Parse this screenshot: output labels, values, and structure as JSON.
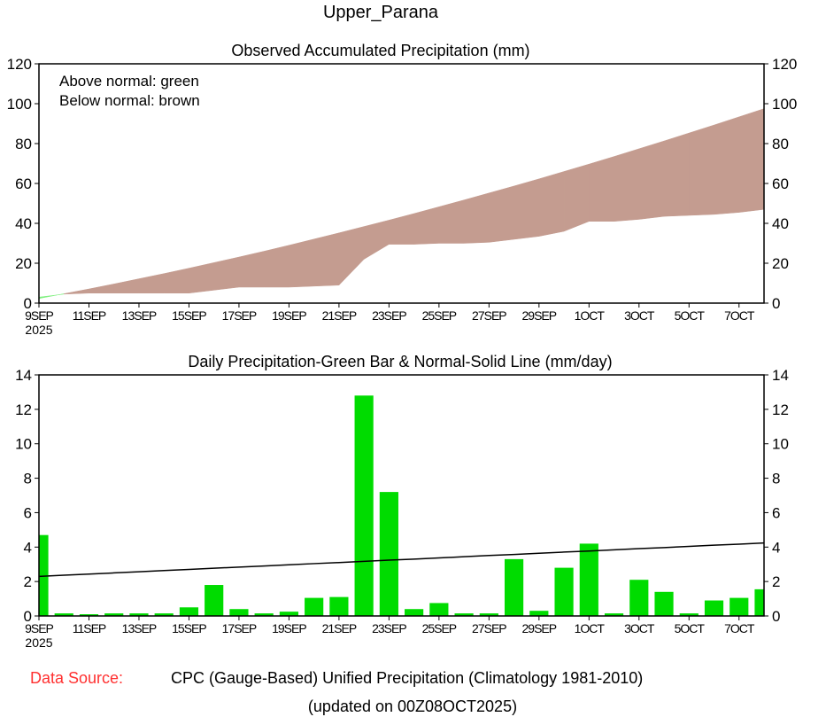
{
  "title": "Upper_Parana",
  "footer": {
    "source_label": "Data Source:",
    "source_text": "CPC (Gauge-Based) Unified Precipitation (Climatology 1981-2010)",
    "updated": "(updated on 00Z08OCT2025)"
  },
  "colors": {
    "below": "#c49c90",
    "above": "#80f080",
    "bar": "#00dc00",
    "source_label": "#ff3030"
  },
  "chart_data": [
    {
      "type": "area",
      "title": "Observed Accumulated Precipitation (mm)",
      "legend": [
        "Above normal: green",
        "Below normal: brown"
      ],
      "ylim": [
        0,
        120
      ],
      "yticks": [
        "0",
        "20",
        "40",
        "60",
        "80",
        "100",
        "120"
      ],
      "xtick_labels": [
        "9SEP",
        "11SEP",
        "13SEP",
        "15SEP",
        "17SEP",
        "19SEP",
        "21SEP",
        "23SEP",
        "25SEP",
        "27SEP",
        "29SEP",
        "1OCT",
        "3OCT",
        "5OCT",
        "7OCT"
      ],
      "year_label": "2025",
      "x": [
        "9SEP",
        "10SEP",
        "11SEP",
        "12SEP",
        "13SEP",
        "14SEP",
        "15SEP",
        "16SEP",
        "17SEP",
        "18SEP",
        "19SEP",
        "20SEP",
        "21SEP",
        "22SEP",
        "23SEP",
        "24SEP",
        "25SEP",
        "26SEP",
        "27SEP",
        "28SEP",
        "29SEP",
        "30SEP",
        "1OCT",
        "2OCT",
        "3OCT",
        "4OCT",
        "5OCT",
        "6OCT",
        "7OCT",
        "8OCT"
      ],
      "series": [
        {
          "name": "Observed accumulated",
          "values": [
            3,
            4.5,
            5,
            5,
            5,
            5,
            5,
            6.5,
            8,
            8,
            8,
            8.5,
            9,
            22,
            29.5,
            29.5,
            30,
            30,
            30.5,
            32,
            33.5,
            36,
            41,
            41,
            42,
            43.5,
            44,
            44.5,
            45.5,
            47
          ]
        },
        {
          "name": "Normal accumulated",
          "values": [
            2.3,
            4.7,
            7.1,
            9.6,
            12.2,
            14.8,
            17.5,
            20.3,
            23.1,
            26,
            29,
            32.1,
            35.2,
            38.4,
            41.6,
            44.9,
            48.3,
            51.7,
            55.2,
            58.7,
            62.3,
            66,
            69.7,
            73.5,
            77.4,
            81.3,
            85.3,
            89.3,
            93.4,
            97.5
          ]
        }
      ]
    },
    {
      "type": "bar",
      "title": "Daily Precipitation-Green Bar & Normal-Solid Line (mm/day)",
      "ylim": [
        0,
        14
      ],
      "yticks": [
        "0",
        "2",
        "4",
        "6",
        "8",
        "10",
        "12",
        "14"
      ],
      "xtick_labels": [
        "9SEP",
        "11SEP",
        "13SEP",
        "15SEP",
        "17SEP",
        "19SEP",
        "21SEP",
        "23SEP",
        "25SEP",
        "27SEP",
        "29SEP",
        "1OCT",
        "3OCT",
        "5OCT",
        "7OCT"
      ],
      "year_label": "2025",
      "series": [
        {
          "name": "Daily precipitation",
          "values": [
            4.7,
            0.15,
            0.1,
            0.15,
            0.15,
            0.15,
            0.5,
            1.8,
            0.4,
            0.15,
            0.25,
            1.05,
            1.1,
            12.8,
            7.2,
            0.4,
            0.75,
            0.15,
            0.15,
            3.3,
            0.3,
            2.8,
            4.2,
            0.15,
            2.1,
            1.4,
            0.15,
            0.9,
            1.05,
            1.55
          ]
        },
        {
          "name": "Normal daily",
          "values": [
            2.3,
            2.37,
            2.43,
            2.5,
            2.57,
            2.64,
            2.7,
            2.77,
            2.84,
            2.9,
            2.97,
            3.04,
            3.1,
            3.17,
            3.24,
            3.3,
            3.37,
            3.44,
            3.51,
            3.57,
            3.64,
            3.71,
            3.77,
            3.84,
            3.91,
            3.97,
            4.04,
            4.11,
            4.17,
            4.24
          ]
        }
      ]
    }
  ]
}
